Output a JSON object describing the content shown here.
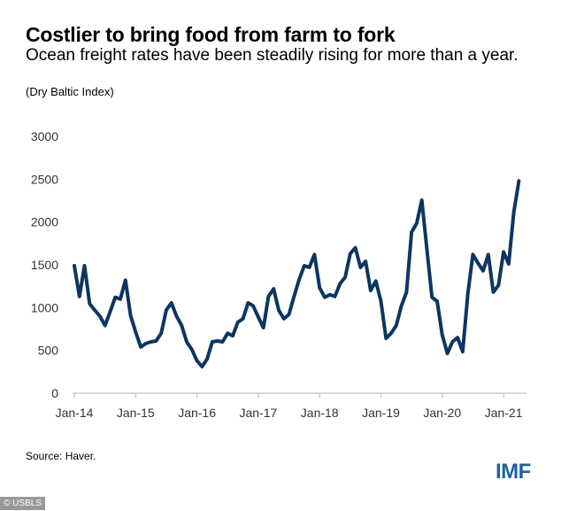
{
  "title": "Costlier to bring food from farm to fork",
  "subtitle": "Ocean freight rates have been steadily rising for more than a year.",
  "unit_note": "(Dry Baltic Index)",
  "source": "Source: Haver.",
  "logo": "IMF",
  "watermark": "© USBLS",
  "colors": {
    "line": "#0d3561"
  },
  "chart_data": {
    "type": "line",
    "title": "Costlier to bring food from farm to fork",
    "xlabel": "",
    "ylabel": "Dry Baltic Index",
    "ylim": [
      0,
      3000
    ],
    "yticks": [
      0,
      500,
      1000,
      1500,
      2000,
      2500,
      3000
    ],
    "xticks": [
      "Jan-14",
      "Jan-15",
      "Jan-16",
      "Jan-17",
      "Jan-18",
      "Jan-19",
      "Jan-20",
      "Jan-21"
    ],
    "x_start": "Jan-14",
    "x_step": "month",
    "grid": false,
    "series": [
      {
        "name": "Dry Baltic Index",
        "values": [
          1490,
          1130,
          1490,
          1045,
          970,
          900,
          790,
          950,
          1120,
          1100,
          1320,
          910,
          715,
          540,
          580,
          600,
          610,
          700,
          970,
          1055,
          900,
          790,
          600,
          510,
          380,
          310,
          400,
          600,
          610,
          600,
          700,
          670,
          830,
          870,
          1055,
          1020,
          890,
          765,
          1130,
          1220,
          970,
          870,
          920,
          1130,
          1330,
          1490,
          1470,
          1620,
          1230,
          1120,
          1150,
          1130,
          1280,
          1355,
          1630,
          1700,
          1470,
          1540,
          1200,
          1310,
          1075,
          640,
          700,
          790,
          1020,
          1180,
          1880,
          1985,
          2255,
          1675,
          1120,
          1075,
          680,
          465,
          600,
          650,
          485,
          1160,
          1620,
          1520,
          1430,
          1620,
          1180,
          1260,
          1650,
          1510,
          2110,
          2480
        ]
      }
    ]
  }
}
